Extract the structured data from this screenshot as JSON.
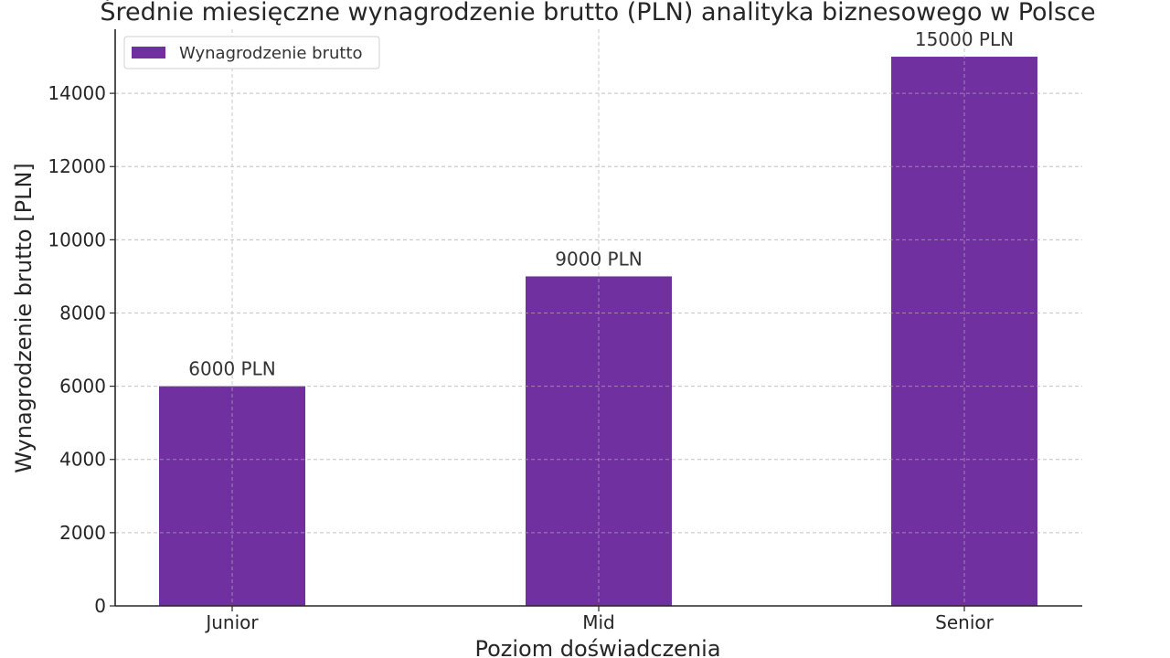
{
  "chart_data": {
    "type": "bar",
    "title": "Średnie miesięczne wynagrodzenie brutto (PLN) analityka biznesowego w Polsce",
    "xlabel": "Poziom doświadczenia",
    "ylabel": "Wynagrodzenie brutto [PLN]",
    "categories": [
      "Junior",
      "Mid",
      "Senior"
    ],
    "series": [
      {
        "name": "Wynagrodzenie brutto",
        "values": [
          6000,
          9000,
          15000
        ],
        "color": "#7030a0"
      }
    ],
    "data_labels": [
      "6000 PLN",
      "9000 PLN",
      "15000 PLN"
    ],
    "ylim": [
      0,
      15750
    ],
    "yticks": [
      0,
      2000,
      4000,
      6000,
      8000,
      10000,
      12000,
      14000
    ],
    "grid": true,
    "legend_position": "top-left"
  }
}
